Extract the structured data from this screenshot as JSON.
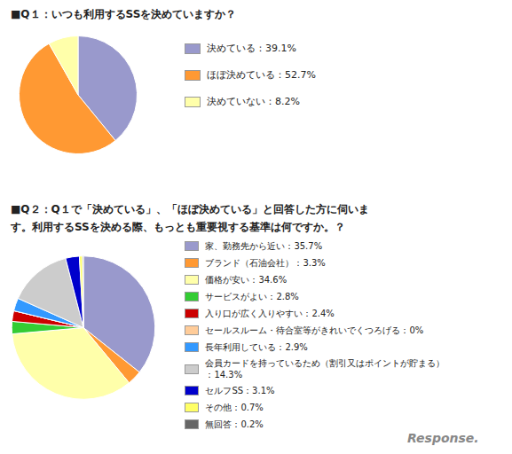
{
  "chart_data": [
    {
      "type": "pie",
      "title": "■Q１：いつも利用するSSを決めていますか？",
      "categories": [
        "決めている：39.1%",
        "ほぼ決めている：52.7%",
        "決めていない：8.2%"
      ],
      "values": [
        39.1,
        52.7,
        8.2
      ],
      "colors": [
        "#9999cc",
        "#ff9933",
        "#ffffaa"
      ]
    },
    {
      "type": "pie",
      "title": "■Q２：Q１で「決めている」、「ほぼ決めている」と回答した方に伺いま\nす。利用するSSを決める際、もっとも重要視する基準は何ですか。？",
      "categories": [
        "家、勤務先から近い：35.7%",
        "ブランド（石油会社）：3.3%",
        "価格が安い：34.6%",
        "サービスがよい：2.8%",
        "入り口が広く入りやすい：2.4%",
        "セールスルーム・待合室等がきれいでくつろげる：0%",
        "長年利用している：2.9%",
        "会員カードを持っているため（割引又はポイントが貯まる）\n：14.3%",
        "セルフSS：3.1%",
        "その他：0.7%",
        "無回答：0.2%"
      ],
      "values": [
        35.7,
        3.3,
        34.6,
        2.8,
        2.4,
        0.001,
        2.9,
        14.3,
        3.1,
        0.7,
        0.2
      ],
      "colors": [
        "#9999cc",
        "#ff9933",
        "#ffffaa",
        "#33cc33",
        "#cc0000",
        "#ffcc99",
        "#3399ff",
        "#cccccc",
        "#0000cc",
        "#ffff66",
        "#666666"
      ],
      "annotations": [
        "Response."
      ]
    }
  ]
}
